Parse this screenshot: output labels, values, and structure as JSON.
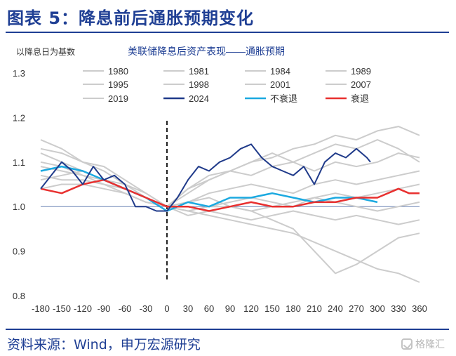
{
  "figure": {
    "title": "图表 5：降息前后通胀预期变化",
    "source": "资料来源：Wind，申万宏源研究",
    "watermark": "格隆汇"
  },
  "chart_data": {
    "type": "line",
    "title": "美联储降息后资产表现——通胀预期",
    "ylabel": "以降息日为基数",
    "xlabel": "",
    "xlim": [
      -180,
      360
    ],
    "ylim": [
      0.8,
      1.3
    ],
    "xticks": [
      -180,
      -150,
      -120,
      -90,
      -60,
      -30,
      0,
      30,
      60,
      90,
      120,
      150,
      180,
      210,
      240,
      270,
      300,
      330,
      360
    ],
    "yticks": [
      "0.8",
      "0.9",
      "1.0",
      "1.1",
      "1.2",
      "1.3"
    ],
    "reference_line_y": 1.0,
    "event_line_x": 0,
    "legend_position": "top",
    "colors": {
      "history": "#cccccc",
      "2024": "#1f3a8a",
      "no_recession": "#1ba9e0",
      "recession": "#e8302f"
    },
    "series": [
      {
        "name": "1980",
        "style": "history",
        "x": [
          -180,
          -150,
          -120,
          -90,
          -60,
          -30,
          0,
          30,
          60,
          90,
          120,
          150,
          180,
          210,
          240,
          270,
          300,
          330,
          360
        ],
        "values": [
          1.06,
          1.07,
          1.08,
          1.06,
          1.05,
          1.03,
          1.0,
          1.04,
          1.07,
          1.08,
          1.1,
          1.11,
          1.13,
          1.14,
          1.16,
          1.15,
          1.17,
          1.18,
          1.16
        ]
      },
      {
        "name": "1981",
        "style": "history",
        "x": [
          -180,
          -150,
          -120,
          -90,
          -60,
          -30,
          0,
          30,
          60,
          90,
          120,
          150,
          180,
          210,
          240,
          270,
          300,
          330,
          360
        ],
        "values": [
          1.13,
          1.12,
          1.1,
          1.09,
          1.06,
          1.03,
          1.0,
          1.03,
          1.06,
          1.08,
          1.1,
          1.12,
          1.1,
          1.12,
          1.14,
          1.13,
          1.15,
          1.13,
          1.1
        ]
      },
      {
        "name": "1984",
        "style": "history",
        "x": [
          -180,
          -150,
          -120,
          -90,
          -60,
          -30,
          0,
          30,
          60,
          90,
          120,
          150,
          180,
          210,
          240,
          270,
          300,
          330,
          360
        ],
        "values": [
          1.15,
          1.13,
          1.1,
          1.08,
          1.05,
          1.02,
          1.0,
          1.04,
          1.06,
          1.08,
          1.07,
          1.09,
          1.1,
          1.08,
          1.1,
          1.09,
          1.1,
          1.12,
          1.11
        ]
      },
      {
        "name": "1989",
        "style": "history",
        "x": [
          -180,
          -150,
          -120,
          -90,
          -60,
          -30,
          0,
          30,
          60,
          90,
          120,
          150,
          180,
          210,
          240,
          270,
          300,
          330,
          360
        ],
        "values": [
          1.04,
          1.05,
          1.05,
          1.04,
          1.03,
          1.01,
          1.0,
          1.01,
          1.03,
          1.04,
          1.05,
          1.04,
          1.03,
          1.05,
          1.06,
          1.05,
          1.06,
          1.07,
          1.08
        ]
      },
      {
        "name": "1995",
        "style": "history",
        "x": [
          -180,
          -150,
          -120,
          -90,
          -60,
          -30,
          0,
          30,
          60,
          90,
          120,
          150,
          180,
          210,
          240,
          270,
          300,
          330,
          360
        ],
        "values": [
          1.08,
          1.09,
          1.07,
          1.06,
          1.04,
          1.02,
          1.0,
          0.99,
          1.0,
          1.01,
          1.02,
          1.01,
          1.0,
          1.02,
          1.03,
          1.02,
          1.03,
          1.04,
          1.05
        ]
      },
      {
        "name": "1998",
        "style": "history",
        "x": [
          -180,
          -150,
          -120,
          -90,
          -60,
          -30,
          0,
          30,
          60,
          90,
          120,
          150,
          180,
          210,
          240,
          270,
          300,
          330,
          360
        ],
        "values": [
          1.1,
          1.09,
          1.07,
          1.05,
          1.04,
          1.02,
          1.0,
          0.98,
          0.99,
          0.98,
          0.97,
          0.98,
          0.99,
          0.98,
          0.97,
          0.98,
          0.97,
          0.96,
          0.97
        ]
      },
      {
        "name": "2001",
        "style": "history",
        "x": [
          -180,
          -150,
          -120,
          -90,
          -60,
          -30,
          0,
          30,
          60,
          90,
          120,
          150,
          180,
          210,
          240,
          270,
          300,
          330,
          360
        ],
        "values": [
          1.12,
          1.1,
          1.08,
          1.06,
          1.04,
          1.02,
          1.0,
          0.99,
          0.98,
          0.97,
          0.96,
          0.95,
          0.94,
          0.92,
          0.9,
          0.88,
          0.86,
          0.85,
          0.83
        ]
      },
      {
        "name": "2007",
        "style": "history",
        "x": [
          -180,
          -150,
          -120,
          -90,
          -60,
          -30,
          0,
          30,
          60,
          90,
          120,
          150,
          180,
          210,
          240,
          270,
          300,
          330,
          360
        ],
        "values": [
          1.09,
          1.08,
          1.07,
          1.06,
          1.04,
          1.02,
          1.0,
          1.01,
          1.0,
          1.0,
          0.99,
          0.97,
          0.95,
          0.9,
          0.85,
          0.87,
          0.9,
          0.93,
          0.94
        ]
      },
      {
        "name": "2019",
        "style": "history",
        "x": [
          -180,
          -150,
          -120,
          -90,
          -60,
          -30,
          0,
          30,
          60,
          90,
          120,
          150,
          180,
          210,
          240,
          270,
          300,
          330,
          360
        ],
        "values": [
          1.07,
          1.06,
          1.06,
          1.05,
          1.03,
          1.01,
          1.0,
          1.01,
          1.02,
          1.0,
          0.99,
          1.0,
          1.01,
          1.02,
          1.01,
          1.0,
          0.99,
          1.0,
          1.01
        ]
      },
      {
        "name": "2024",
        "style": "2024",
        "x": [
          -180,
          -165,
          -150,
          -135,
          -120,
          -105,
          -90,
          -75,
          -60,
          -45,
          -30,
          -15,
          0,
          15,
          30,
          45,
          60,
          75,
          90,
          105,
          120,
          135,
          150,
          165,
          180,
          195,
          210,
          225,
          240,
          255,
          270,
          285,
          290
        ],
        "values": [
          1.04,
          1.07,
          1.1,
          1.08,
          1.05,
          1.09,
          1.06,
          1.07,
          1.05,
          1.0,
          1.0,
          0.99,
          0.99,
          1.02,
          1.06,
          1.09,
          1.08,
          1.1,
          1.11,
          1.13,
          1.14,
          1.11,
          1.09,
          1.08,
          1.07,
          1.09,
          1.05,
          1.1,
          1.12,
          1.11,
          1.13,
          1.11,
          1.1
        ]
      },
      {
        "name": "不衰退",
        "style": "no_recession",
        "x": [
          -180,
          -150,
          -120,
          -90,
          -60,
          -30,
          0,
          30,
          60,
          90,
          120,
          150,
          180,
          210,
          240,
          270,
          300
        ],
        "values": [
          1.08,
          1.09,
          1.08,
          1.06,
          1.04,
          1.02,
          0.99,
          1.01,
          1.0,
          1.02,
          1.02,
          1.03,
          1.02,
          1.01,
          1.02,
          1.02,
          1.01
        ]
      },
      {
        "name": "衰退",
        "style": "recession",
        "x": [
          -180,
          -150,
          -120,
          -90,
          -60,
          -30,
          0,
          30,
          60,
          90,
          120,
          150,
          180,
          210,
          240,
          270,
          300,
          330,
          345,
          360
        ],
        "values": [
          1.04,
          1.03,
          1.05,
          1.06,
          1.04,
          1.02,
          1.0,
          1.0,
          0.99,
          1.0,
          1.01,
          1.0,
          1.0,
          1.01,
          1.01,
          1.02,
          1.02,
          1.04,
          1.03,
          1.03
        ]
      }
    ]
  }
}
